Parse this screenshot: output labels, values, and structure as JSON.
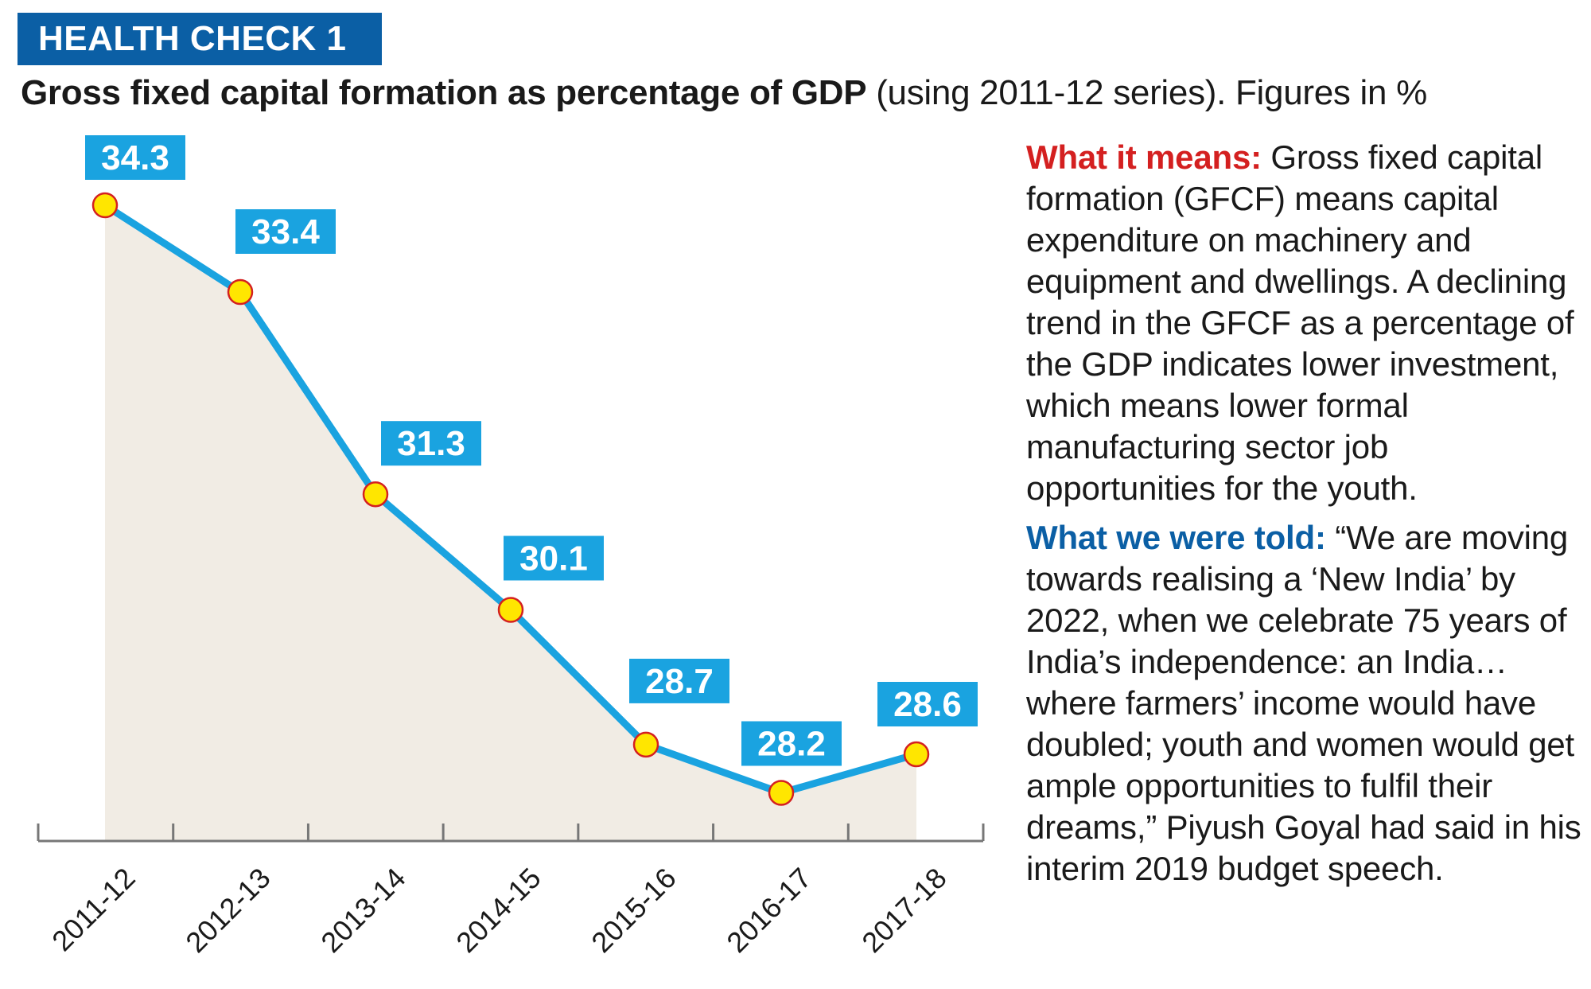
{
  "header": {
    "badge": "HEALTH CHECK 1",
    "title_bold": "Gross fixed capital formation as percentage of GDP",
    "title_rest": " (using 2011-12 series). Figures in %"
  },
  "chart_data": {
    "type": "area",
    "categories": [
      "2011-12",
      "2012-13",
      "2013-14",
      "2014-15",
      "2015-16",
      "2016-17",
      "2017-18"
    ],
    "values": [
      34.3,
      33.4,
      31.3,
      30.1,
      28.7,
      28.2,
      28.6
    ],
    "value_labels": [
      "34.3",
      "33.4",
      "31.3",
      "30.1",
      "28.7",
      "28.2",
      "28.6"
    ],
    "title": "Gross fixed capital formation as percentage of GDP",
    "xlabel": "",
    "ylabel": "",
    "unit": "%",
    "grid": false
  },
  "panel": {
    "means_heading": "What it means:",
    "means_text": " Gross fixed capital formation (GFCF) means capital expenditure on machinery and equipment and dwellings. A declining trend in the GFCF as a percentage of the GDP indicates lower investment, which means lower formal manufacturing sector job opportunities for the youth.",
    "told_heading": "What we were told:",
    "told_text": " “We are moving towards realising a ‘New India’ by 2022, when we celebrate 75 years of India’s independence: an India… where farmers’ income would have doubled; youth and women would get ample opportunities to fulfil their dreams,” Piyush Goyal had said in his interim 2019 budget speech."
  },
  "colors": {
    "badge_bg": "#0b5fa5",
    "line": "#1aa3e0",
    "area": "#f1ece4",
    "marker": "#ffe600",
    "marker_stroke": "#d42020",
    "axis": "#777777",
    "heading_red": "#d42020",
    "heading_blue": "#0b5fa5"
  }
}
